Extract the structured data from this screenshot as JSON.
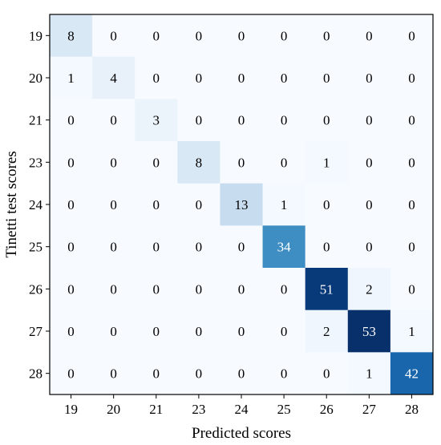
{
  "chart_data": {
    "type": "heatmap",
    "title": "",
    "xlabel": "Predicted scores",
    "ylabel": "Tinetti test scores",
    "x_categories": [
      "19",
      "20",
      "21",
      "23",
      "24",
      "25",
      "26",
      "27",
      "28"
    ],
    "y_categories": [
      "19",
      "20",
      "21",
      "23",
      "24",
      "25",
      "26",
      "27",
      "28"
    ],
    "values": [
      [
        8,
        0,
        0,
        0,
        0,
        0,
        0,
        0,
        0
      ],
      [
        1,
        4,
        0,
        0,
        0,
        0,
        0,
        0,
        0
      ],
      [
        0,
        0,
        3,
        0,
        0,
        0,
        0,
        0,
        0
      ],
      [
        0,
        0,
        0,
        8,
        0,
        0,
        1,
        0,
        0
      ],
      [
        0,
        0,
        0,
        0,
        13,
        1,
        0,
        0,
        0
      ],
      [
        0,
        0,
        0,
        0,
        0,
        34,
        0,
        0,
        0
      ],
      [
        0,
        0,
        0,
        0,
        0,
        0,
        51,
        2,
        0
      ],
      [
        0,
        0,
        0,
        0,
        0,
        0,
        2,
        53,
        1
      ],
      [
        0,
        0,
        0,
        0,
        0,
        0,
        0,
        1,
        42
      ]
    ],
    "colormap": "Blues",
    "vmin": 0,
    "vmax": 53,
    "grid": false,
    "legend": "none"
  }
}
